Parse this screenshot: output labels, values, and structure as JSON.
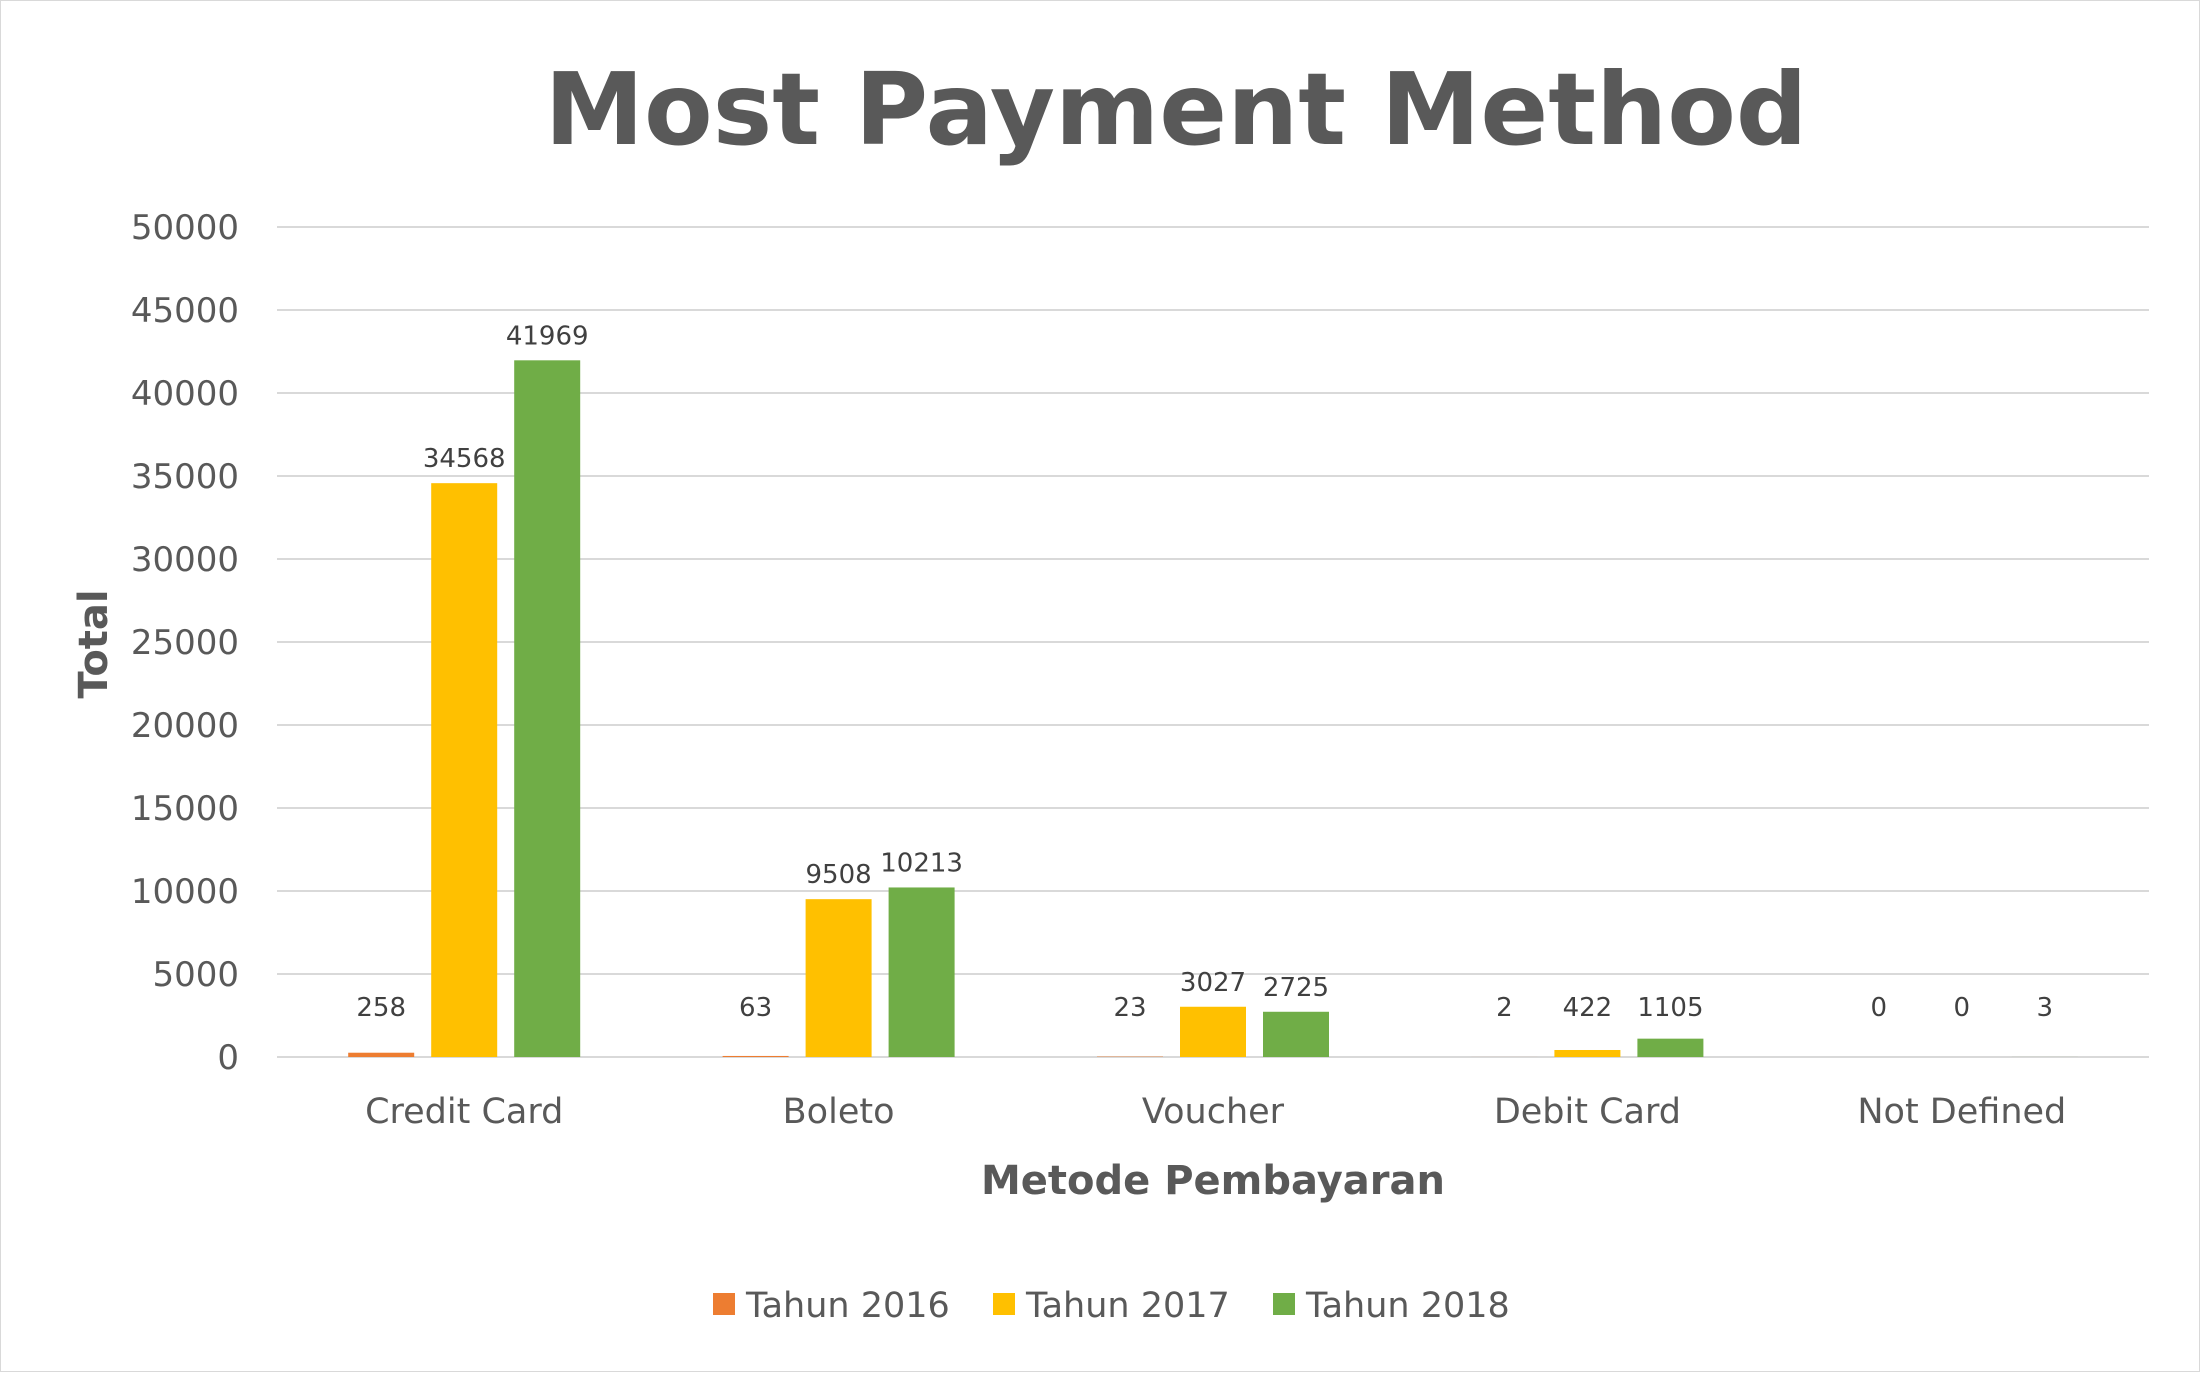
{
  "chart_data": {
    "type": "bar",
    "title": "Most Payment Method",
    "xlabel": "Metode Pembayaran",
    "ylabel": "Total",
    "ylim": [
      0,
      50000
    ],
    "yticks": [
      0,
      5000,
      10000,
      15000,
      20000,
      25000,
      30000,
      35000,
      40000,
      45000,
      50000
    ],
    "grid": true,
    "legend_position": "bottom",
    "categories": [
      "Credit Card",
      "Boleto",
      "Voucher",
      "Debit Card",
      "Not Defined"
    ],
    "series": [
      {
        "name": "Tahun 2016",
        "color": "#ED7D31",
        "values": [
          258,
          63,
          23,
          2,
          0
        ]
      },
      {
        "name": "Tahun 2017",
        "color": "#FFC000",
        "values": [
          34568,
          9508,
          3027,
          422,
          0
        ]
      },
      {
        "name": "Tahun 2018",
        "color": "#70AD47",
        "values": [
          41969,
          10213,
          2725,
          1105,
          3
        ]
      }
    ]
  }
}
